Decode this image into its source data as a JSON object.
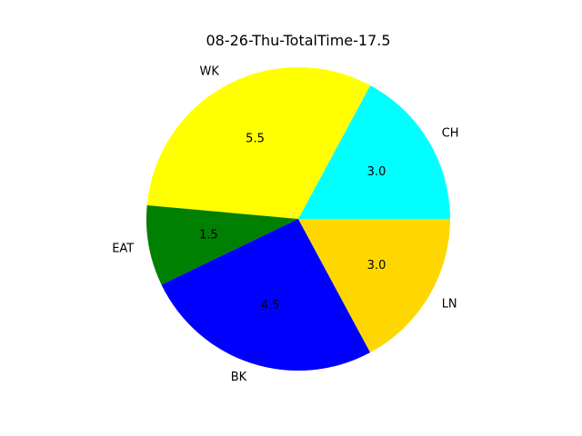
{
  "chart_data": {
    "type": "pie",
    "title": "08-26-Thu-TotalTime-17.5",
    "start_angle_deg": 0,
    "direction": "counterclockwise",
    "slices": [
      {
        "label": "CH",
        "value": 3.0,
        "value_label": "3.0",
        "color": "#00ffff"
      },
      {
        "label": "WK",
        "value": 5.5,
        "value_label": "5.5",
        "color": "#ffff00"
      },
      {
        "label": "EAT",
        "value": 1.5,
        "value_label": "1.5",
        "color": "#008000"
      },
      {
        "label": "BK",
        "value": 4.5,
        "value_label": "4.5",
        "color": "#0000ff"
      },
      {
        "label": "LN",
        "value": 3.0,
        "value_label": "3.0",
        "color": "#ffd700"
      }
    ]
  }
}
